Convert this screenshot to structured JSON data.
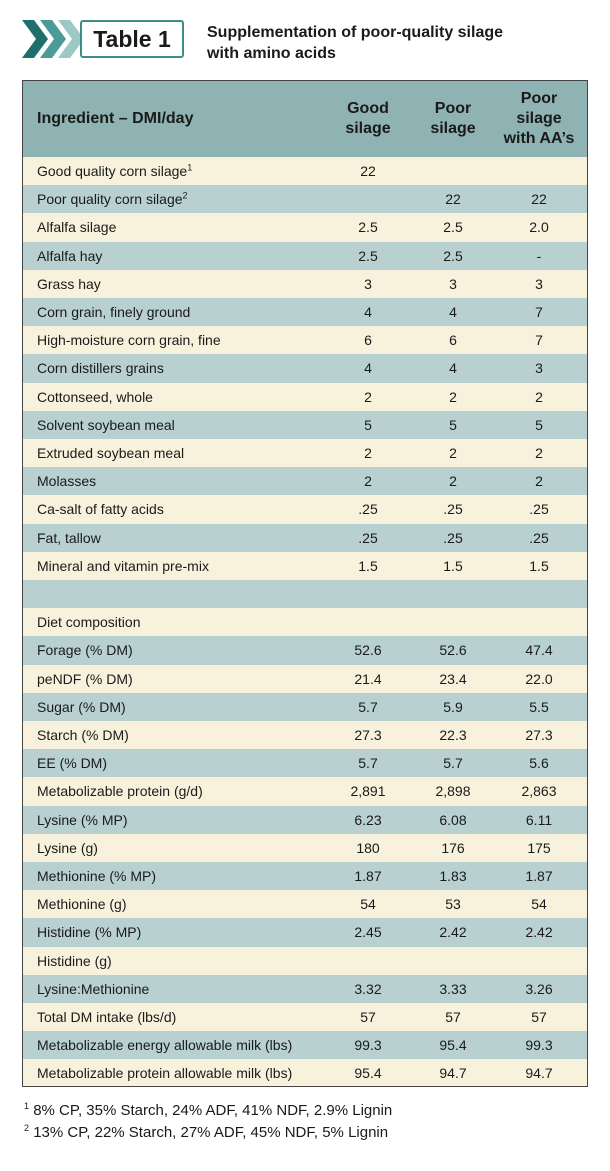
{
  "header": {
    "badge": "Table 1",
    "title": [
      "Supplementation of poor-quality silage",
      "with amino acids"
    ]
  },
  "table": {
    "columns": [
      [
        "Ingredient – DMI/day"
      ],
      [
        "Good",
        "silage"
      ],
      [
        "Poor",
        "silage"
      ],
      [
        "Poor",
        "silage",
        "with AA’s"
      ]
    ],
    "rows": [
      {
        "label": "Good quality corn silage",
        "sup": "1",
        "values": [
          "22",
          null,
          null
        ]
      },
      {
        "label": "Poor quality corn silage",
        "sup": "2",
        "values": [
          null,
          "22",
          "22"
        ]
      },
      {
        "label": "Alfalfa silage",
        "values": [
          "2.5",
          "2.5",
          "2.0"
        ]
      },
      {
        "label": "Alfalfa hay",
        "values": [
          "2.5",
          "2.5",
          "-"
        ]
      },
      {
        "label": "Grass hay",
        "values": [
          "3",
          "3",
          "3"
        ]
      },
      {
        "label": "Corn grain, finely ground",
        "values": [
          "4",
          "4",
          "7"
        ]
      },
      {
        "label": "High-moisture corn grain, fine",
        "values": [
          "6",
          "6",
          "7"
        ]
      },
      {
        "label": "Corn distillers grains",
        "values": [
          "4",
          "4",
          "3"
        ]
      },
      {
        "label": "Cottonseed, whole",
        "values": [
          "2",
          "2",
          "2"
        ]
      },
      {
        "label": "Solvent soybean meal",
        "values": [
          "5",
          "5",
          "5"
        ]
      },
      {
        "label": "Extruded soybean meal",
        "values": [
          "2",
          "2",
          "2"
        ]
      },
      {
        "label": "Molasses",
        "values": [
          "2",
          "2",
          "2"
        ]
      },
      {
        "label": "Ca-salt of fatty acids",
        "values": [
          ".25",
          ".25",
          ".25"
        ]
      },
      {
        "label": "Fat, tallow",
        "values": [
          ".25",
          ".25",
          ".25"
        ]
      },
      {
        "label": "Mineral and vitamin pre-mix",
        "values": [
          "1.5",
          "1.5",
          "1.5"
        ]
      },
      {
        "label": null,
        "values": [
          null,
          null,
          null
        ]
      },
      {
        "label": "Diet composition",
        "values": [
          null,
          null,
          null
        ]
      },
      {
        "label": "Forage (% DM)",
        "values": [
          "52.6",
          "52.6",
          "47.4"
        ]
      },
      {
        "label": "peNDF (% DM)",
        "values": [
          "21.4",
          "23.4",
          "22.0"
        ]
      },
      {
        "label": "Sugar (% DM)",
        "values": [
          "5.7",
          "5.9",
          "5.5"
        ]
      },
      {
        "label": "Starch (% DM)",
        "values": [
          "27.3",
          "22.3",
          "27.3"
        ]
      },
      {
        "label": "EE (% DM)",
        "values": [
          "5.7",
          "5.7",
          "5.6"
        ]
      },
      {
        "label": "Metabolizable protein (g/d)",
        "values": [
          "2,891",
          "2,898",
          "2,863"
        ]
      },
      {
        "label": "Lysine (% MP)",
        "values": [
          "6.23",
          "6.08",
          "6.11"
        ]
      },
      {
        "label": "Lysine (g)",
        "values": [
          "180",
          "176",
          "175"
        ]
      },
      {
        "label": "Methionine (% MP)",
        "values": [
          "1.87",
          "1.83",
          "1.87"
        ]
      },
      {
        "label": "Methionine (g)",
        "values": [
          "54",
          "53",
          "54"
        ]
      },
      {
        "label": "Histidine (% MP)",
        "values": [
          "2.45",
          "2.42",
          "2.42"
        ]
      },
      {
        "label": "Histidine (g)",
        "values": [
          null,
          null,
          null
        ]
      },
      {
        "label": "Lysine:Methionine",
        "values": [
          "3.32",
          "3.33",
          "3.26"
        ]
      },
      {
        "label": "Total DM intake (lbs/d)",
        "values": [
          "57",
          "57",
          "57"
        ]
      },
      {
        "label": "Metabolizable energy allowable milk (lbs)",
        "values": [
          "99.3",
          "95.4",
          "99.3"
        ]
      },
      {
        "label": "Metabolizable protein allowable milk (lbs)",
        "values": [
          "95.4",
          "94.7",
          "94.7"
        ]
      }
    ]
  },
  "footnotes": [
    {
      "mark": "1",
      "text": "8% CP, 35% Starch, 24% ADF, 41% NDF, 2.9% Lignin"
    },
    {
      "mark": "2",
      "text": "13% CP, 22% Starch, 27% ADF, 45% NDF, 5% Lignin"
    }
  ]
}
